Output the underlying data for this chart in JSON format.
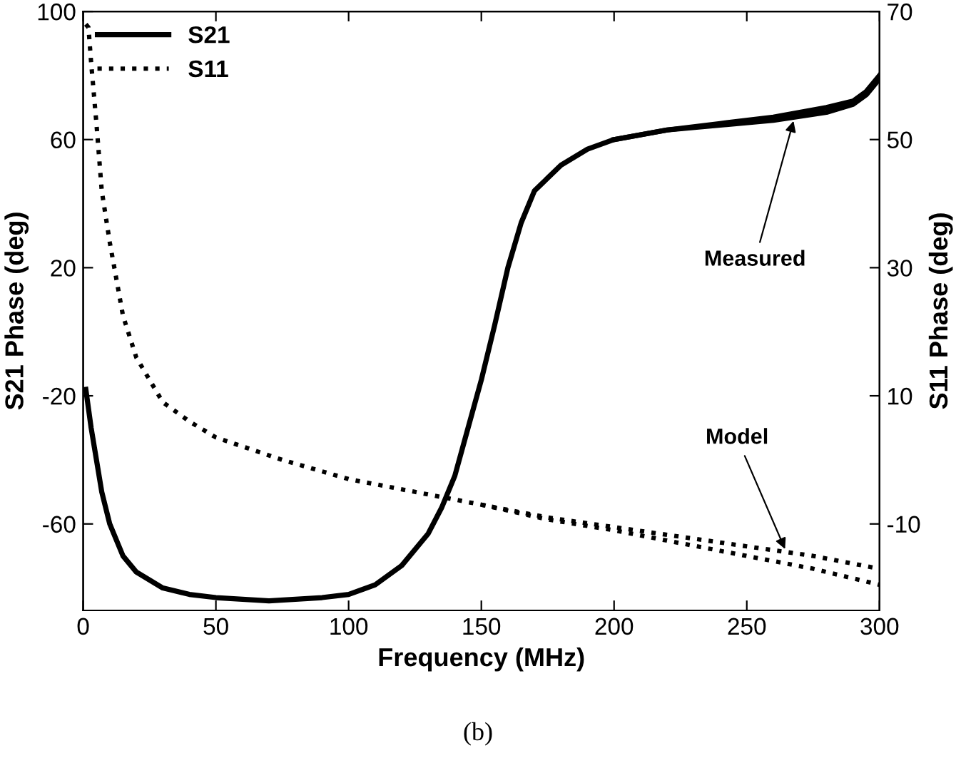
{
  "chart_data": {
    "type": "line",
    "xlabel": "Frequency (MHz)",
    "ylabel": "S21 Phase (deg)",
    "y2label": "S11 Phase (deg)",
    "xlim": [
      0,
      300
    ],
    "xticks": [
      0,
      50,
      100,
      150,
      200,
      250,
      300
    ],
    "ylim": [
      -87,
      100
    ],
    "yticks": [
      -60,
      -20,
      20,
      60,
      100
    ],
    "y2lim": [
      -23.5,
      70
    ],
    "y2ticks": [
      -10,
      10,
      30,
      50,
      70
    ],
    "grid": false,
    "legend": "top left",
    "series": [
      {
        "name": "S21",
        "color": "#000000",
        "line_style": "solid",
        "x": [
          1,
          2,
          3,
          5,
          7,
          10,
          15,
          20,
          30,
          40,
          50,
          70,
          90,
          100,
          110,
          120,
          130,
          135,
          140,
          145,
          150,
          155,
          160,
          165,
          170,
          180,
          190,
          200,
          220,
          240,
          260,
          280,
          290,
          295,
          300
        ],
        "values": [
          -18,
          -24,
          -30,
          -40,
          -50,
          -60,
          -70,
          -75,
          -80,
          -82,
          -83,
          -84,
          -83,
          -82,
          -79,
          -73,
          -63,
          -55,
          -45,
          -30,
          -15,
          2,
          20,
          34,
          44,
          52,
          57,
          60,
          63,
          65,
          67,
          70,
          72,
          75,
          80
        ]
      },
      {
        "color": "#000000",
        "line_style": "solid",
        "x": [
          200,
          220,
          240,
          260,
          280,
          290,
          295,
          300
        ],
        "values": [
          60,
          63,
          64.5,
          66,
          68.5,
          71,
          74,
          79
        ]
      },
      {
        "name": "S11",
        "color": "#000000",
        "line_style": "dotted",
        "axis": "y2",
        "x": [
          1,
          2,
          3,
          5,
          7,
          10,
          15,
          20,
          30,
          40,
          50,
          75,
          100,
          125,
          150,
          175,
          200,
          225,
          250,
          275,
          300
        ],
        "values": [
          68,
          67.5,
          62,
          52.5,
          42,
          34,
          22.5,
          16,
          9,
          6,
          3.5,
          0,
          -3,
          -5,
          -7,
          -9,
          -10.5,
          -12,
          -13.5,
          -15,
          -17
        ]
      },
      {
        "color": "#000000",
        "line_style": "dotted",
        "axis": "y2",
        "x": [
          150,
          175,
          200,
          225,
          250,
          275,
          300
        ],
        "values": [
          -7,
          -9.3,
          -11,
          -13,
          -15,
          -17,
          -19.5
        ]
      }
    ],
    "annotations": [
      {
        "text": "Measured",
        "x": 268,
        "y": 67
      },
      {
        "text": "Model",
        "x": 265,
        "y": -69
      },
      "(b)"
    ]
  }
}
